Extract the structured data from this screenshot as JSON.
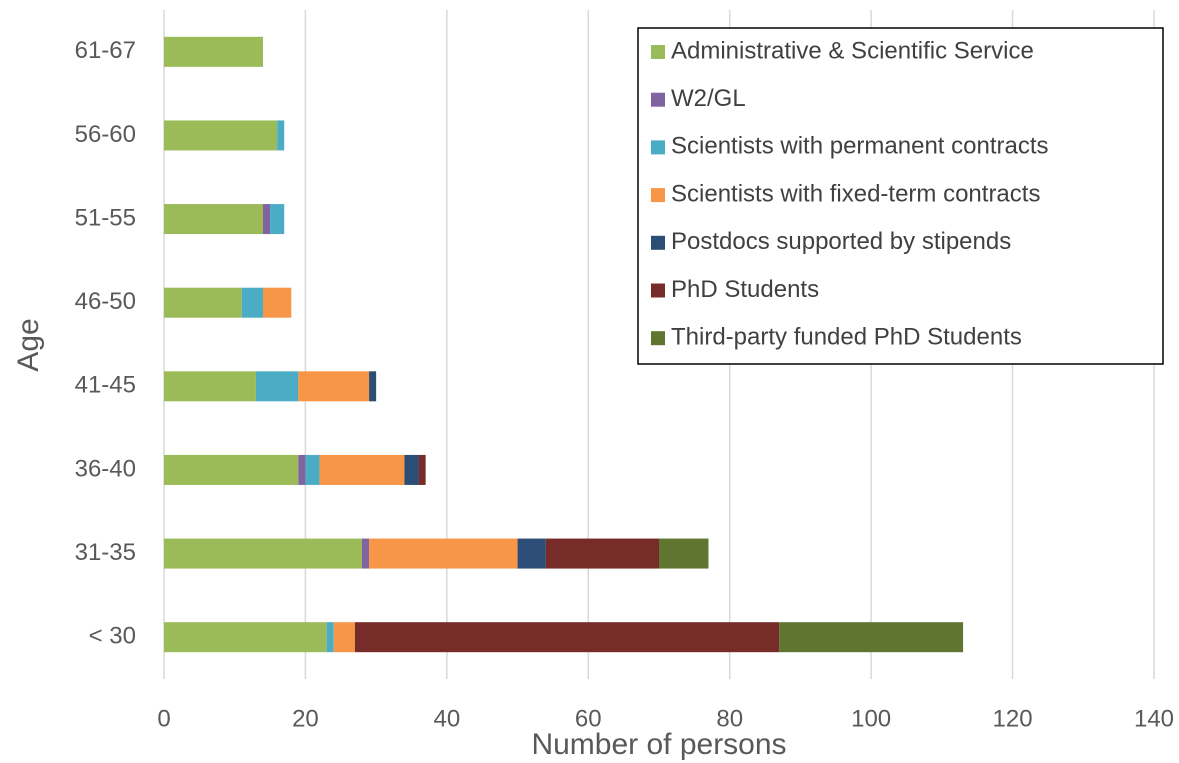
{
  "chart_data": {
    "type": "barh-stacked",
    "xlabel": "Number of persons",
    "ylabel": "Age",
    "categories": [
      "61-67",
      "56-60",
      "51-55",
      "46-50",
      "41-45",
      "36-40",
      "31-35",
      "< 30"
    ],
    "series": [
      {
        "name": "Administrative & Scientific Service",
        "color": "#9bbb59",
        "values": [
          14,
          16,
          14,
          11,
          13,
          19,
          28,
          23
        ]
      },
      {
        "name": "W2/GL",
        "color": "#8064a2",
        "values": [
          0,
          0,
          1,
          0,
          0,
          1,
          1,
          0
        ]
      },
      {
        "name": "Scientists with permanent contracts",
        "color": "#4bacc6",
        "values": [
          0,
          1,
          2,
          3,
          6,
          2,
          0,
          1
        ]
      },
      {
        "name": "Scientists with fixed-term contracts",
        "color": "#f79646",
        "values": [
          0,
          0,
          0,
          4,
          10,
          12,
          21,
          3
        ]
      },
      {
        "name": "Postdocs supported by stipends",
        "color": "#2c4d75",
        "values": [
          0,
          0,
          0,
          0,
          1,
          2,
          4,
          0
        ]
      },
      {
        "name": "PhD Students",
        "color": "#772c2a",
        "values": [
          0,
          0,
          0,
          0,
          0,
          1,
          16,
          60
        ]
      },
      {
        "name": "Third-party funded PhD Students",
        "color": "#5f7530",
        "values": [
          0,
          0,
          0,
          0,
          0,
          0,
          7,
          26
        ]
      }
    ],
    "xlim": [
      0,
      140
    ],
    "xticks": [
      0,
      20,
      40,
      60,
      80,
      100,
      120,
      140
    ],
    "grid": true,
    "legend": "upper right"
  }
}
